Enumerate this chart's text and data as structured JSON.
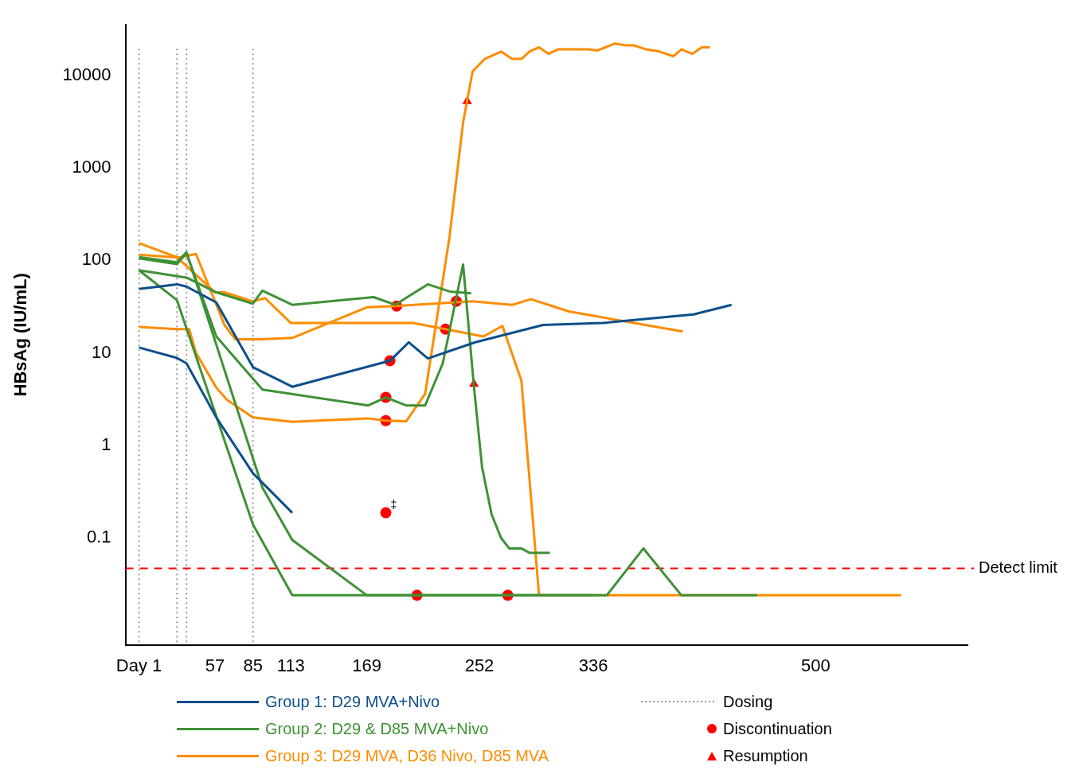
{
  "chart_data": {
    "type": "line",
    "ylabel": "HBsAg (IU/mL)",
    "log": "y",
    "grid": false,
    "legend": "bottom",
    "xlim": [
      -9,
      612
    ],
    "xticks": [
      {
        "value": 1,
        "label": "Day 1"
      },
      57,
      85,
      113,
      169,
      252,
      336,
      500
    ],
    "ylim": [
      0.007,
      35000
    ],
    "yticks": [
      0.1,
      1,
      10,
      100,
      1000,
      10000
    ],
    "ref_lines": [
      {
        "axis": "x",
        "value": 1,
        "label": "Dosing",
        "color": "#999999",
        "line_style": "dotted"
      },
      {
        "axis": "x",
        "value": 29,
        "color": "#999999",
        "line_style": "dotted"
      },
      {
        "axis": "x",
        "value": 36,
        "color": "#999999",
        "line_style": "dotted"
      },
      {
        "axis": "x",
        "value": 85,
        "color": "#999999",
        "line_style": "dotted"
      },
      {
        "axis": "y",
        "value": 0.047,
        "label": "Detect limit",
        "color": "#ff0000",
        "line_style": "dashed"
      }
    ],
    "annotations": [
      {
        "text": "‡",
        "x": 183,
        "y": 0.187
      }
    ],
    "series": [
      {
        "name": "Group 1: D29 MVA+Nivo",
        "color": "#0d4f8b",
        "marker": "none",
        "x": [
          1,
          29,
          36,
          58,
          85,
          114,
          186,
          200,
          214,
          249,
          299,
          343,
          410,
          438
        ],
        "values": [
          49,
          55,
          52,
          35,
          7.0,
          4.3,
          8.2,
          13,
          8.7,
          13,
          20,
          21,
          26,
          33
        ]
      },
      {
        "color": "#0d4f8b",
        "marker": "none",
        "x": [
          1,
          29,
          36,
          58,
          85,
          114
        ],
        "values": [
          11.4,
          8.8,
          7.7,
          2.0,
          0.5,
          0.187
        ]
      },
      {
        "name": "Group 2: D29 & D85 MVA+Nivo",
        "color": "#3f9135",
        "marker": "none",
        "x": [
          1,
          29,
          36,
          58,
          92,
          170,
          183,
          198,
          212,
          225,
          240,
          248,
          254,
          261,
          268,
          274,
          283,
          289,
          304
        ],
        "values": [
          105,
          91,
          120,
          15,
          4.0,
          2.7,
          3.3,
          2.7,
          2.7,
          7.7,
          90,
          4.3,
          0.58,
          0.18,
          0.1,
          0.077,
          0.077,
          0.069,
          0.069
        ]
      },
      {
        "color": "#3f9135",
        "marker": "none",
        "x": [
          1,
          36,
          58,
          85,
          92,
          114,
          174,
          190,
          200,
          214,
          230,
          246
        ],
        "values": [
          78,
          65,
          45,
          34,
          47,
          33,
          40,
          33,
          41,
          55,
          46,
          44
        ]
      },
      {
        "color": "#3f9135",
        "marker": "none",
        "x": [
          1,
          29,
          85,
          114,
          346,
          373,
          401,
          457
        ],
        "values": [
          78,
          37,
          0.14,
          0.024,
          0.024,
          0.077,
          0.024,
          0.024
        ]
      },
      {
        "color": "#3f9135",
        "marker": "none",
        "x": [
          1,
          29,
          36,
          92,
          114,
          169,
          336
        ],
        "values": [
          108,
          95,
          122,
          0.35,
          0.095,
          0.024,
          0.024
        ]
      },
      {
        "name": "Group 3: D29 MVA, D36 Nivo, D85 MVA",
        "color": "#ff8c00",
        "marker": "none",
        "x": [
          1,
          29,
          38,
          43,
          58,
          66,
          85,
          114,
          170,
          183,
          198,
          212,
          230,
          240,
          247,
          256,
          268,
          276,
          283,
          289,
          296,
          303,
          310,
          317,
          332,
          339,
          345,
          352,
          360,
          366,
          375,
          385,
          395,
          401,
          409,
          416,
          422
        ],
        "values": [
          19,
          18,
          18,
          10,
          4.2,
          3.1,
          2.0,
          1.8,
          1.96,
          1.85,
          1.82,
          3.6,
          179,
          3100,
          11000,
          15000,
          18000,
          15000,
          15000,
          18000,
          20000,
          17000,
          19000,
          19000,
          19000,
          18500,
          20000,
          22000,
          21000,
          21000,
          19000,
          18000,
          16000,
          19000,
          17000,
          20000,
          20000
        ]
      },
      {
        "color": "#ff8c00",
        "marker": "none",
        "x": [
          1,
          30,
          43,
          64,
          72,
          91,
          114,
          169,
          190,
          247,
          276,
          290,
          318,
          402
        ],
        "values": [
          115,
          107,
          117,
          20,
          14,
          14,
          14.5,
          31,
          32,
          36,
          33,
          38,
          28,
          17
        ]
      },
      {
        "color": "#ff8c00",
        "marker": "none",
        "x": [
          1,
          29,
          57,
          64,
          85,
          94,
          113,
          203,
          227,
          255,
          269,
          283,
          296,
          563
        ],
        "values": [
          153,
          108,
          45,
          45,
          36,
          39,
          21,
          21,
          18,
          15,
          19.5,
          5.0,
          0.024,
          0.024
        ]
      },
      {
        "name": "Discontinuation",
        "type": "scatter",
        "color": "#ff0000",
        "marker": "circle",
        "x": [
          186,
          183,
          183,
          183,
          191,
          235,
          227,
          206,
          273
        ],
        "values": [
          8.2,
          3.3,
          1.85,
          0.187,
          32,
          36,
          18,
          0.024,
          0.024
        ]
      },
      {
        "name": "Resumption",
        "type": "scatter",
        "color": "#ff0000",
        "marker": "triangle",
        "x": [
          243,
          248
        ],
        "values": [
          5200,
          4.6
        ]
      }
    ]
  }
}
